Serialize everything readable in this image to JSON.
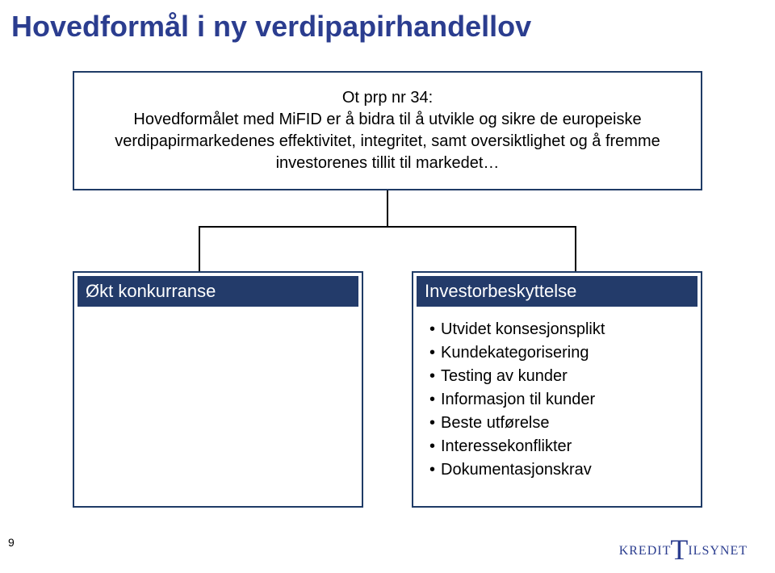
{
  "title": {
    "text": "Hovedformål i ny verdipapirhandellov",
    "color": "#2b3d8f",
    "fontsize": 36
  },
  "main_box": {
    "line1": "Ot prp nr 34:",
    "line2": "Hovedformålet med MiFID er å bidra til å utvikle og sikre de europeiske verdipapirmarkedenes effektivitet, integritet, samt oversiktlighet og å fremme investorenes tillit til markedet…",
    "border_color": "#1f3b66",
    "fontsize": 20,
    "text_color": "#000000"
  },
  "connector": {
    "line_color": "#000000",
    "h_left_pct": 20,
    "h_right_pct": 20
  },
  "columns": {
    "header_bg": "#233b6a",
    "header_color": "#ffffff",
    "header_fontsize": 22,
    "item_fontsize": 20,
    "item_color": "#000000",
    "left": {
      "header": "Økt konkurranse",
      "items": []
    },
    "right": {
      "header": "Investorbeskyttelse",
      "items": [
        "Utvidet konsesjonsplikt",
        "Kundekategorisering",
        "Testing av kunder",
        "Informasjon til kunder",
        "Beste utførelse",
        "Interessekonflikter",
        "Dokumentasjonskrav"
      ]
    }
  },
  "page_number": "9",
  "logo": {
    "left": "KREDIT",
    "big": "T",
    "right": "ILSYNET",
    "color": "#2b3d8f"
  }
}
